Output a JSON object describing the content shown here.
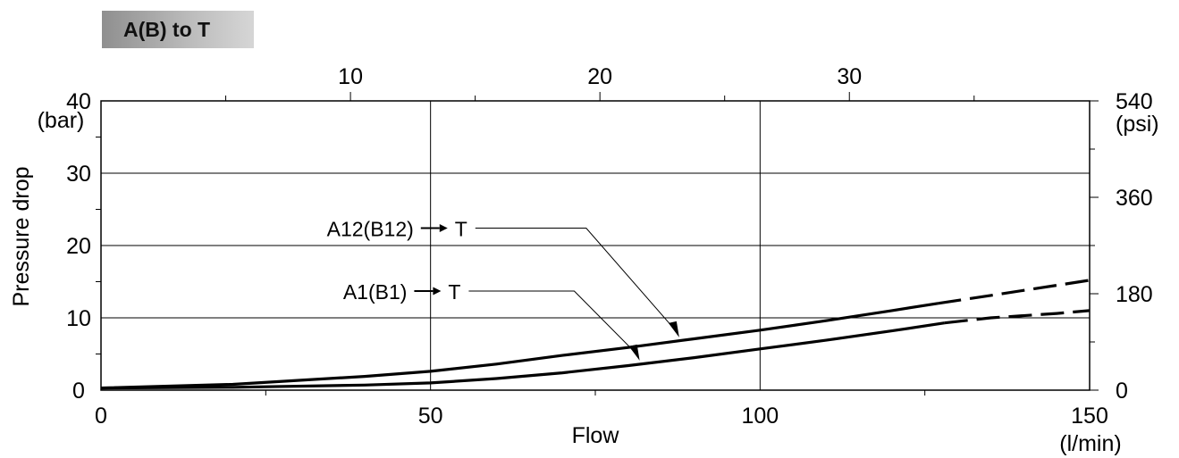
{
  "chart_data": {
    "type": "line",
    "title": "A(B) to T",
    "xlabel": "Flow",
    "x_unit": "(l/min)",
    "ylabel": "Pressure drop",
    "y_unit": "(bar)",
    "xlim": [
      0,
      150
    ],
    "ylim": [
      0,
      40
    ],
    "x_ticks": [
      "0",
      "50",
      "100",
      "150"
    ],
    "y_ticks": [
      "0",
      "10",
      "20",
      "30",
      "40"
    ],
    "secondary_x_ticks": [
      {
        "value": 10,
        "label": "10"
      },
      {
        "value": 20,
        "label": "20"
      },
      {
        "value": 30,
        "label": "30"
      }
    ],
    "secondary_y_ticks": [
      {
        "value": 0,
        "label": "0"
      },
      {
        "value": 180,
        "label": "180"
      },
      {
        "value": 360,
        "label": "360"
      },
      {
        "value": 540,
        "label": "540"
      }
    ],
    "secondary_y_unit": "(psi)",
    "grid": true,
    "series": [
      {
        "name": "A12(B12)",
        "label_suffix": "T",
        "x": [
          0,
          20,
          40,
          50,
          60,
          70,
          80,
          90,
          100,
          110,
          120,
          127,
          135,
          145,
          150
        ],
        "y": [
          0.3,
          0.8,
          1.9,
          2.6,
          3.6,
          4.8,
          5.9,
          7.1,
          8.3,
          9.6,
          11.0,
          12.0,
          13.1,
          14.5,
          15.2
        ],
        "solid_until_x": 127,
        "label_x": 53,
        "label_y": 22.4,
        "anchor_x": 88,
        "anchor_y": 6.8
      },
      {
        "name": "A1(B1)",
        "label_suffix": "T",
        "x": [
          0,
          20,
          40,
          50,
          60,
          70,
          80,
          90,
          100,
          110,
          120,
          128,
          135,
          145,
          150
        ],
        "y": [
          0.3,
          0.4,
          0.7,
          1.0,
          1.6,
          2.4,
          3.4,
          4.5,
          5.7,
          6.9,
          8.2,
          9.3,
          10.0,
          10.6,
          11.0
        ],
        "solid_until_x": 128,
        "label_x": 52,
        "label_y": 13.7,
        "anchor_x": 82,
        "anchor_y": 3.6
      }
    ]
  }
}
